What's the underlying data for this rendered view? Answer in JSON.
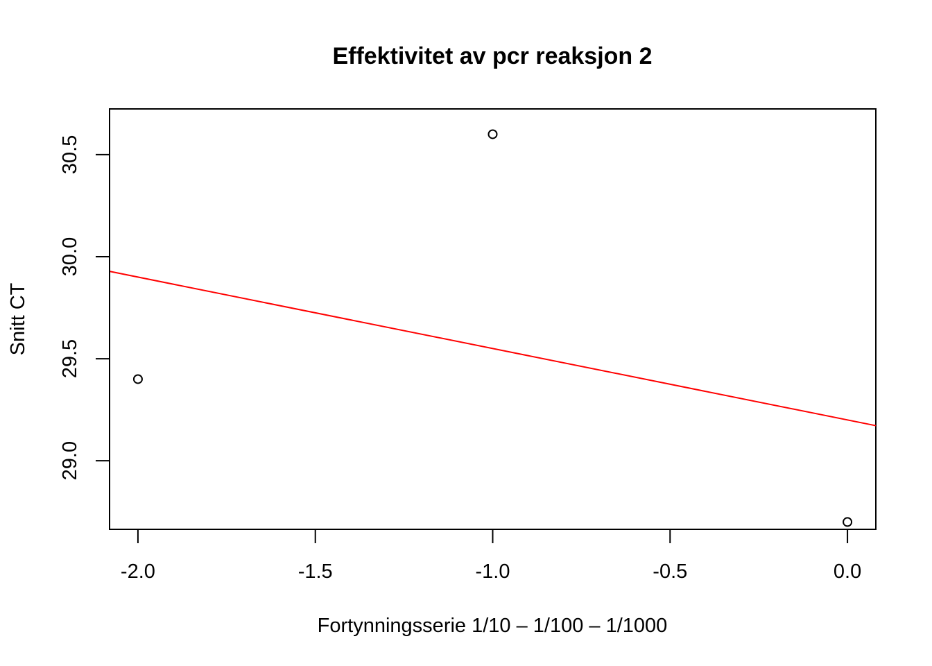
{
  "chart_data": {
    "type": "scatter",
    "title": "Effektivitet av pcr reaksjon 2",
    "xlabel": "Fortynningsserie 1/10 – 1/100 – 1/1000",
    "ylabel": "Snitt CT",
    "xlim": [
      -2.08,
      0.08
    ],
    "ylim": [
      28.664,
      30.724
    ],
    "x_ticks": [
      -2.0,
      -1.5,
      -1.0,
      -0.5,
      0.0
    ],
    "x_tick_labels": [
      "-2.0",
      "-1.5",
      "-1.0",
      "-0.5",
      "0.0"
    ],
    "y_ticks": [
      29.0,
      29.5,
      30.0,
      30.5
    ],
    "y_tick_labels": [
      "29.0",
      "29.5",
      "30.0",
      "30.5"
    ],
    "points": [
      {
        "x": -2.0,
        "y": 29.4
      },
      {
        "x": -1.0,
        "y": 30.6
      },
      {
        "x": 0.0,
        "y": 28.7
      }
    ],
    "regression_line": {
      "intercept": 29.2,
      "slope": -0.35,
      "color": "#ff0000"
    },
    "grid": false,
    "legend": "none",
    "point_color": "#000000"
  }
}
